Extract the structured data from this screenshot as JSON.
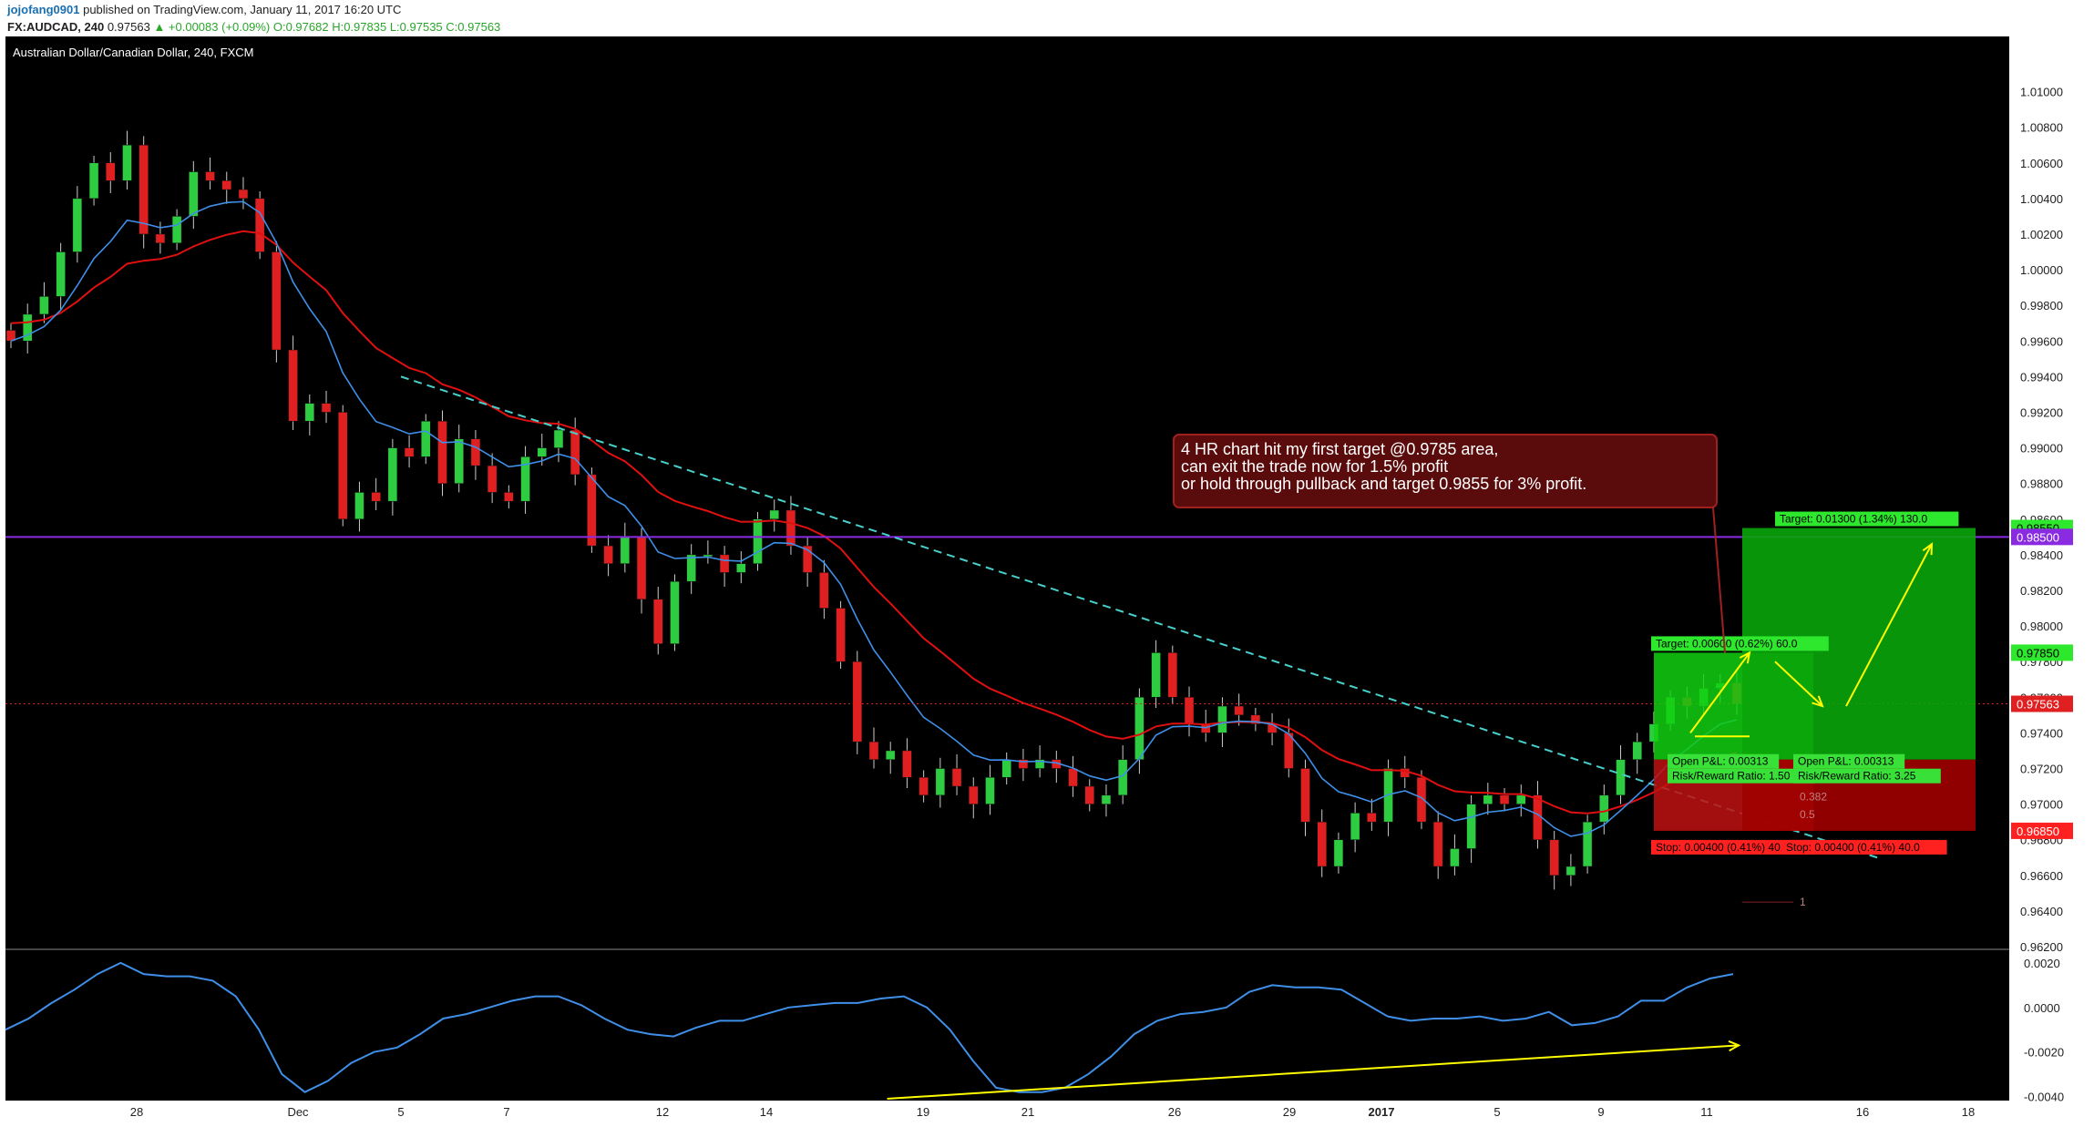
{
  "header": {
    "author": "jojofang0901",
    "published": "published on TradingView.com, January 11, 2017 16:20 UTC",
    "symbol": "FX:AUDCAD, 240",
    "last": "0.97563",
    "change": "▲ +0.00083 (+0.09%)",
    "o": "O:0.97682",
    "h": "H:0.97835",
    "l": "L:0.97535",
    "c": "C:0.97563"
  },
  "colors": {
    "background": "#000000",
    "bull": "#2ecc40",
    "bear": "#e02020",
    "ema_slow": "#e01010",
    "ema_fast": "#3f8fe8",
    "level_line": "#8a2be2",
    "trendline": "#48d1cc",
    "annotation_bg": "#5a0c0c",
    "arrow": "#ffff00",
    "target_zone": "#0aa50a",
    "stop_zone": "#a00000"
  },
  "chart_data": [
    {
      "type": "candlestick",
      "title": "Australian Dollar/Canadian Dollar, 240, FXCM",
      "y_range": [
        0.962,
        1.0115
      ],
      "y_ticks": [
        "1.01000",
        "1.00800",
        "1.00600",
        "1.00400",
        "1.00200",
        "1.00000",
        "0.99800",
        "0.99600",
        "0.99400",
        "0.99200",
        "0.99000",
        "0.98800",
        "0.98600",
        "0.98400",
        "0.98200",
        "0.98000",
        "0.97800",
        "0.97600",
        "0.97400",
        "0.97200",
        "0.97000",
        "0.96800",
        "0.96600",
        "0.96400",
        "0.96200"
      ],
      "x_labels": [
        "28",
        "Dec",
        "5",
        "7",
        "12",
        "14",
        "19",
        "21",
        "26",
        "29",
        "2017",
        "5",
        "9",
        "11",
        "16",
        "18"
      ],
      "close_path": [
        0.996,
        0.9975,
        0.9985,
        1.001,
        1.004,
        1.006,
        1.005,
        1.007,
        1.002,
        1.0015,
        1.003,
        1.0055,
        1.005,
        1.0045,
        1.004,
        1.001,
        0.9955,
        0.9915,
        0.9925,
        0.992,
        0.986,
        0.9875,
        0.987,
        0.99,
        0.9895,
        0.9915,
        0.988,
        0.9905,
        0.989,
        0.9875,
        0.987,
        0.9895,
        0.99,
        0.991,
        0.9885,
        0.9845,
        0.9835,
        0.985,
        0.9815,
        0.979,
        0.9825,
        0.984,
        0.984,
        0.983,
        0.9835,
        0.986,
        0.9865,
        0.9845,
        0.983,
        0.981,
        0.978,
        0.9735,
        0.9725,
        0.973,
        0.9715,
        0.9705,
        0.972,
        0.971,
        0.97,
        0.9715,
        0.9725,
        0.972,
        0.9725,
        0.972,
        0.971,
        0.97,
        0.9705,
        0.9725,
        0.976,
        0.9785,
        0.976,
        0.9745,
        0.974,
        0.9755,
        0.975,
        0.9745,
        0.974,
        0.972,
        0.969,
        0.9665,
        0.968,
        0.9695,
        0.969,
        0.972,
        0.9715,
        0.969,
        0.9665,
        0.9675,
        0.97,
        0.9705,
        0.97,
        0.9705,
        0.968,
        0.966,
        0.9665,
        0.969,
        0.9705,
        0.9725,
        0.9735,
        0.9745,
        0.976,
        0.9755,
        0.9765,
        0.9768,
        0.97563
      ],
      "indicators": [
        "EMA slow (red)",
        "EMA fast (blue)"
      ],
      "current_price": "0.97563",
      "levels": [
        {
          "value": 0.985,
          "label": "0.98500"
        },
        {
          "value": 0.9855,
          "label": "0.98550"
        },
        {
          "value": 0.9785,
          "label": "0.97850"
        },
        {
          "value": 0.9725,
          "label": "0.97250"
        },
        {
          "value": 0.9685,
          "label": "0.96850"
        }
      ],
      "trendline": {
        "from": [
          5,
          0.994
        ],
        "to": [
          16,
          0.967
        ]
      },
      "annotation": [
        "4 HR chart hit my first target @0.9785 area,",
        "can exit the trade now for 1.5% profit",
        "or hold through pullback and target 0.9855 for 3% profit."
      ],
      "position_small": {
        "target_label": "Target: 0.00600 (0.62%) 60.0",
        "pnl_label": "Open P&L: 0.00313",
        "rr_label": "Risk/Reward Ratio: 1.50",
        "stop_label": "Stop: 0.00400 (0.41%) 40.0"
      },
      "position_large": {
        "target_label": "Target: 0.01300 (1.34%) 130.0",
        "pnl_label": "Open P&L: 0.00313",
        "rr_label": "Risk/Reward Ratio: 3.25",
        "stop_label": "Stop: 0.00400 (0.41%) 40.0"
      },
      "fib_labels": [
        "0.382",
        "0.5",
        "1"
      ]
    },
    {
      "type": "line",
      "y_range": [
        -0.0041,
        0.0022
      ],
      "y_ticks": [
        "0.0020",
        "0.0000",
        "-0.0020",
        "-0.0040"
      ],
      "series": [
        {
          "values": [
            -0.001,
            -0.0005,
            0.0002,
            0.0008,
            0.0015,
            0.002,
            0.0015,
            0.0014,
            0.0014,
            0.0012,
            0.0005,
            -0.001,
            -0.003,
            -0.0038,
            -0.0033,
            -0.0025,
            -0.002,
            -0.0018,
            -0.0012,
            -0.0005,
            -0.0003,
            0.0,
            0.0003,
            0.0005,
            0.0005,
            0.0001,
            -0.0005,
            -0.001,
            -0.0012,
            -0.0013,
            -0.0009,
            -0.0006,
            -0.0006,
            -0.0003,
            0.0,
            0.0001,
            0.0002,
            0.0002,
            0.0004,
            0.0005,
            0.0,
            -0.001,
            -0.0024,
            -0.0036,
            -0.0038,
            -0.0038,
            -0.0036,
            -0.003,
            -0.0022,
            -0.0012,
            -0.0006,
            -0.0003,
            -0.0002,
            0.0,
            0.0007,
            0.001,
            0.0009,
            0.0009,
            0.0008,
            0.0002,
            -0.0004,
            -0.0006,
            -0.0005,
            -0.0005,
            -0.0004,
            -0.0006,
            -0.0005,
            -0.0002,
            -0.0008,
            -0.0007,
            -0.0004,
            0.0003,
            0.0003,
            0.0009,
            0.0013,
            0.0015
          ]
        }
      ],
      "divergence_line": {
        "from": [
          0.44,
          -0.0041
        ],
        "to": [
          0.865,
          -0.0017
        ]
      }
    }
  ]
}
